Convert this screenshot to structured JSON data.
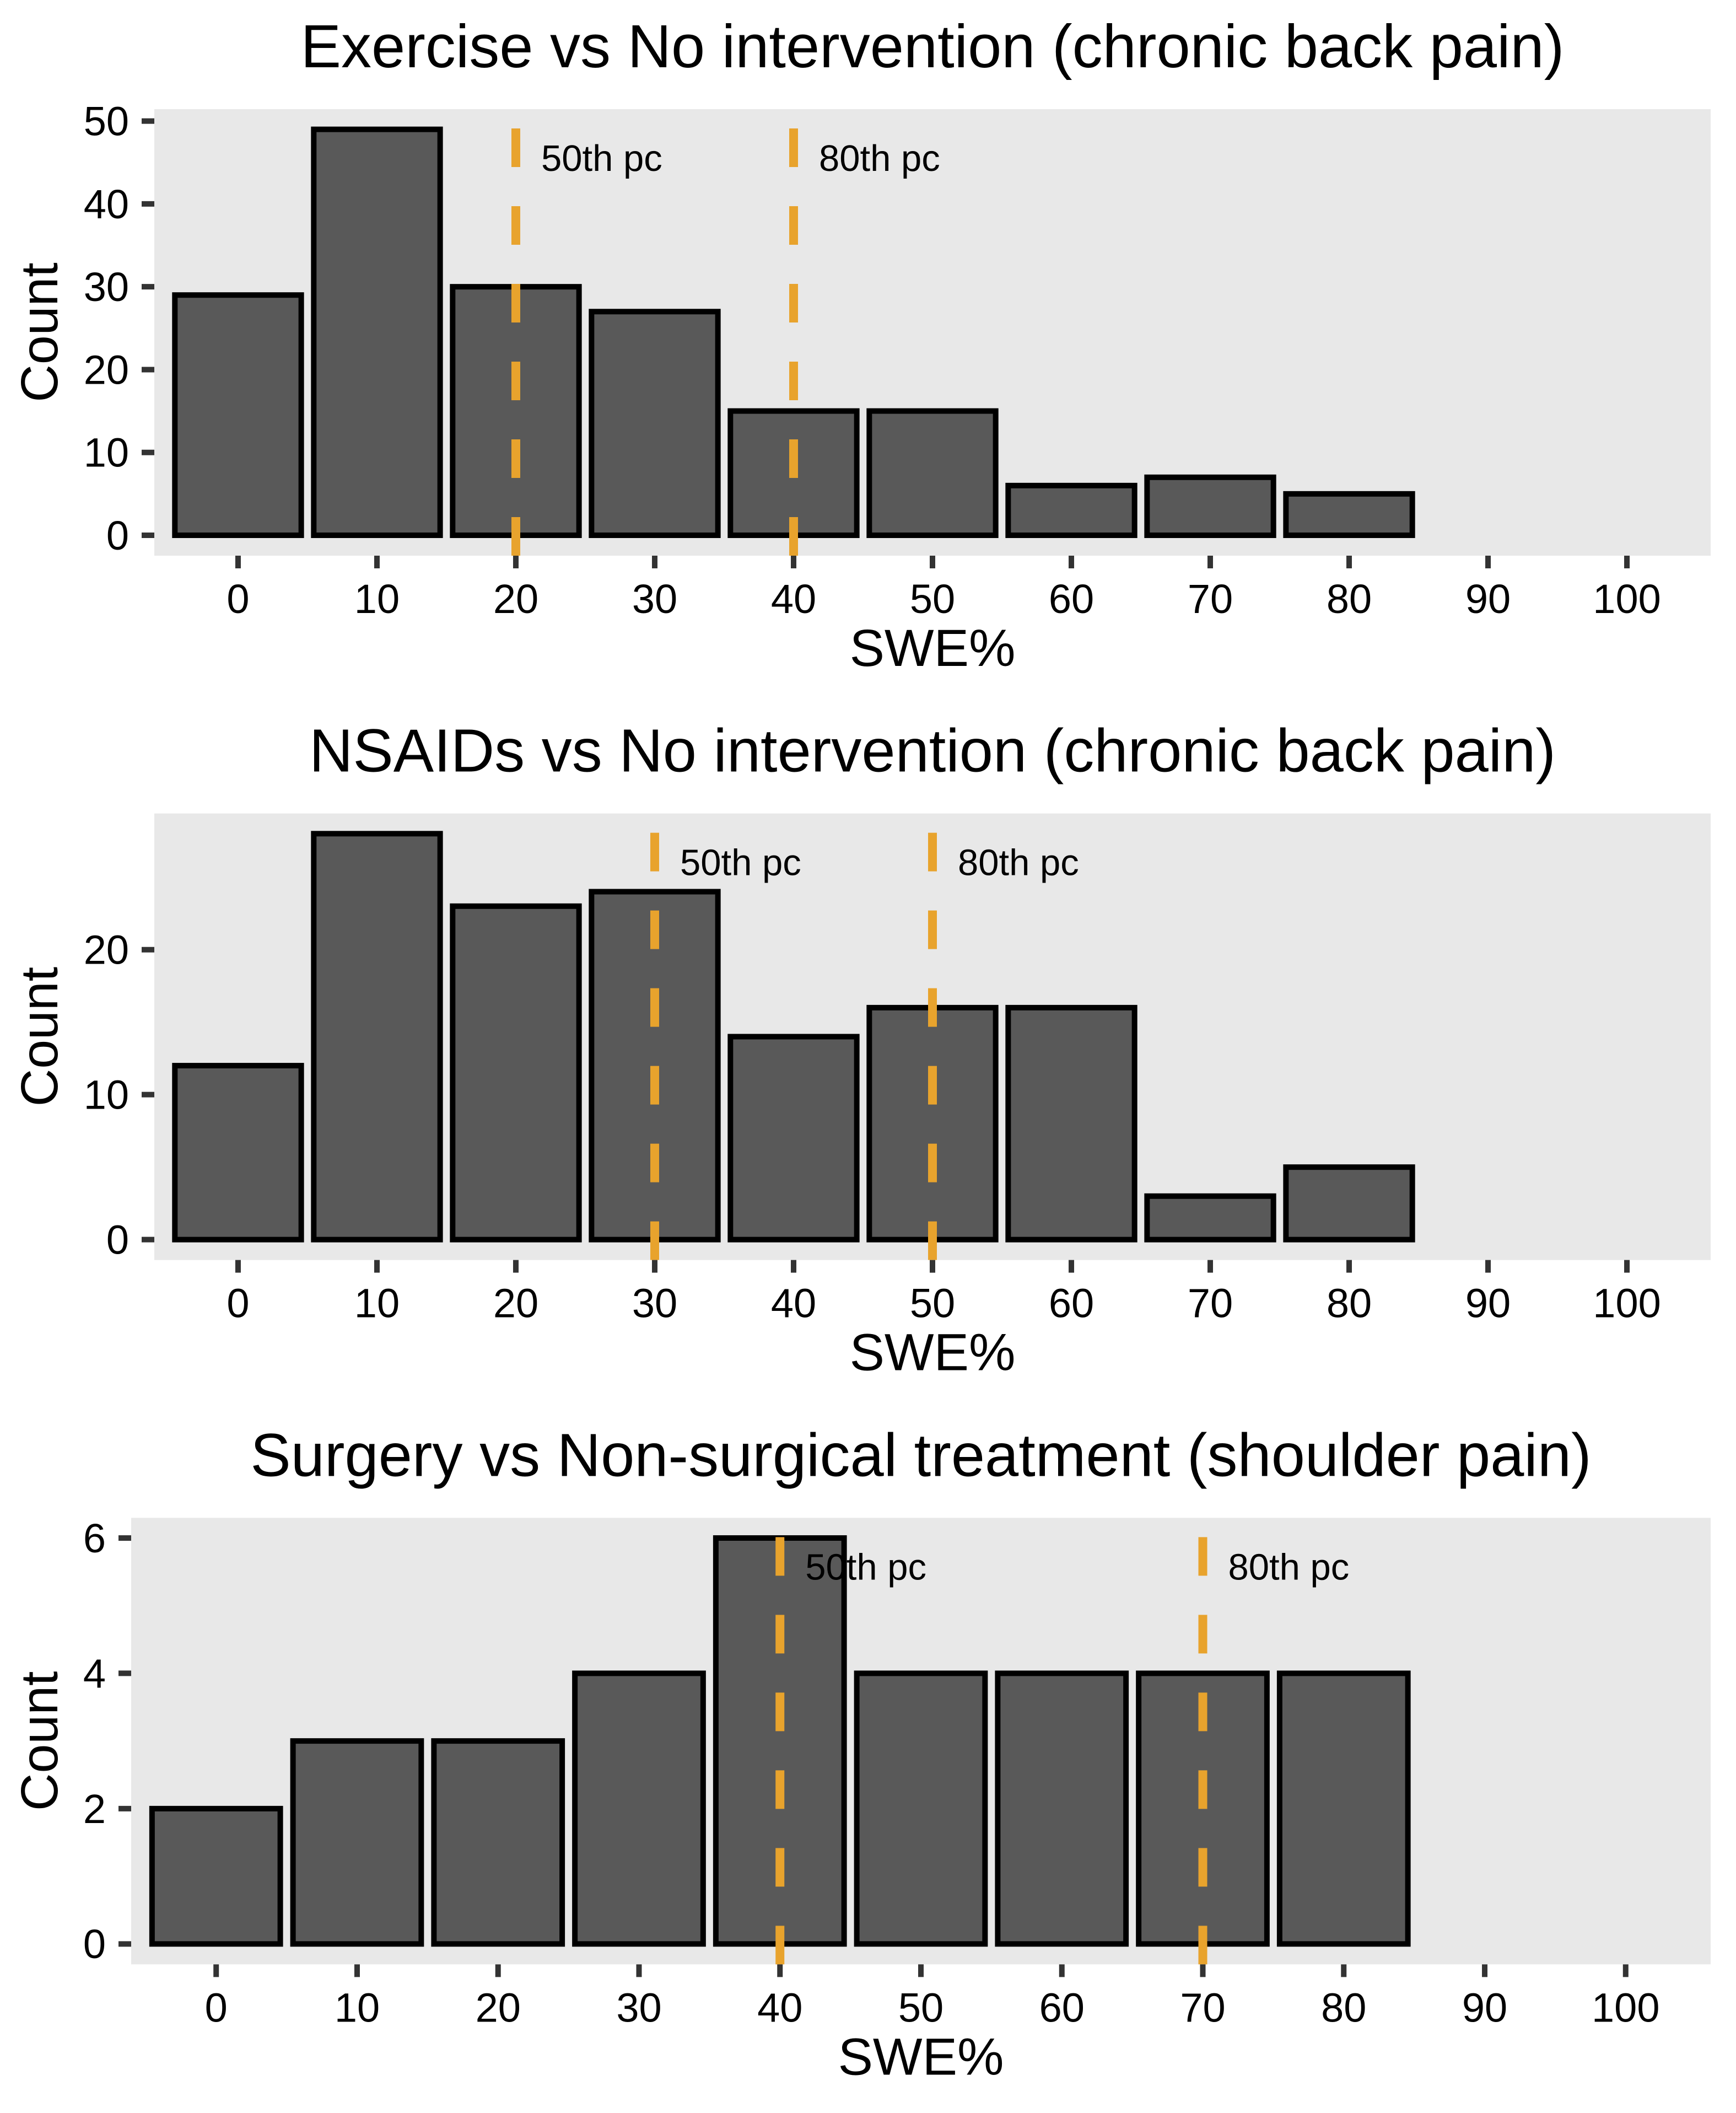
{
  "figure": {
    "background": "#ffffff"
  },
  "style": {
    "panel_bg": "#E8E8E8",
    "bar_fill": "#595959",
    "bar_stroke": "#000000",
    "bar_stroke_width": 10,
    "tick_mark_color": "#333333",
    "text_color": "#000000",
    "refline_color": "#E8A32D",
    "refline_width": 16,
    "refline_dash": [
      70,
      71
    ]
  },
  "shared": {
    "xlabel": "SWE%",
    "ylabel": "Count",
    "x_ticks": [
      0,
      10,
      20,
      30,
      40,
      50,
      60,
      70,
      80,
      90,
      100
    ],
    "xlim": [
      -6,
      106
    ],
    "bin_width": 10
  },
  "chart_data": [
    {
      "type": "bar",
      "title": "Exercise vs No intervention (chronic back pain)",
      "xlabel": "SWE%",
      "ylabel": "Count",
      "categories": [
        0,
        10,
        20,
        30,
        40,
        50,
        60,
        70,
        80
      ],
      "values": [
        29,
        49,
        30,
        27,
        15,
        15,
        6,
        7,
        5
      ],
      "y_ticks": [
        0,
        10,
        20,
        30,
        40,
        50
      ],
      "reference_lines": [
        {
          "x": 20,
          "label": "50th pc"
        },
        {
          "x": 40,
          "label": "80th pc"
        }
      ]
    },
    {
      "type": "bar",
      "title": "NSAIDs vs No intervention (chronic back pain)",
      "xlabel": "SWE%",
      "ylabel": "Count",
      "categories": [
        0,
        10,
        20,
        30,
        40,
        50,
        60,
        70,
        80
      ],
      "values": [
        12,
        28,
        23,
        24,
        14,
        16,
        16,
        3,
        5
      ],
      "y_ticks": [
        0,
        10,
        20
      ],
      "reference_lines": [
        {
          "x": 30,
          "label": "50th pc"
        },
        {
          "x": 50,
          "label": "80th pc"
        }
      ]
    },
    {
      "type": "bar",
      "title": "Surgery vs Non-surgical treatment (shoulder pain)",
      "xlabel": "SWE%",
      "ylabel": "Count",
      "categories": [
        0,
        10,
        20,
        30,
        40,
        50,
        60,
        70,
        80
      ],
      "values": [
        2,
        3,
        3,
        4,
        6,
        4,
        4,
        4,
        4
      ],
      "y_ticks": [
        0,
        2,
        4,
        6
      ],
      "reference_lines": [
        {
          "x": 40,
          "label": "50th pc"
        },
        {
          "x": 70,
          "label": "80th pc"
        }
      ]
    }
  ]
}
